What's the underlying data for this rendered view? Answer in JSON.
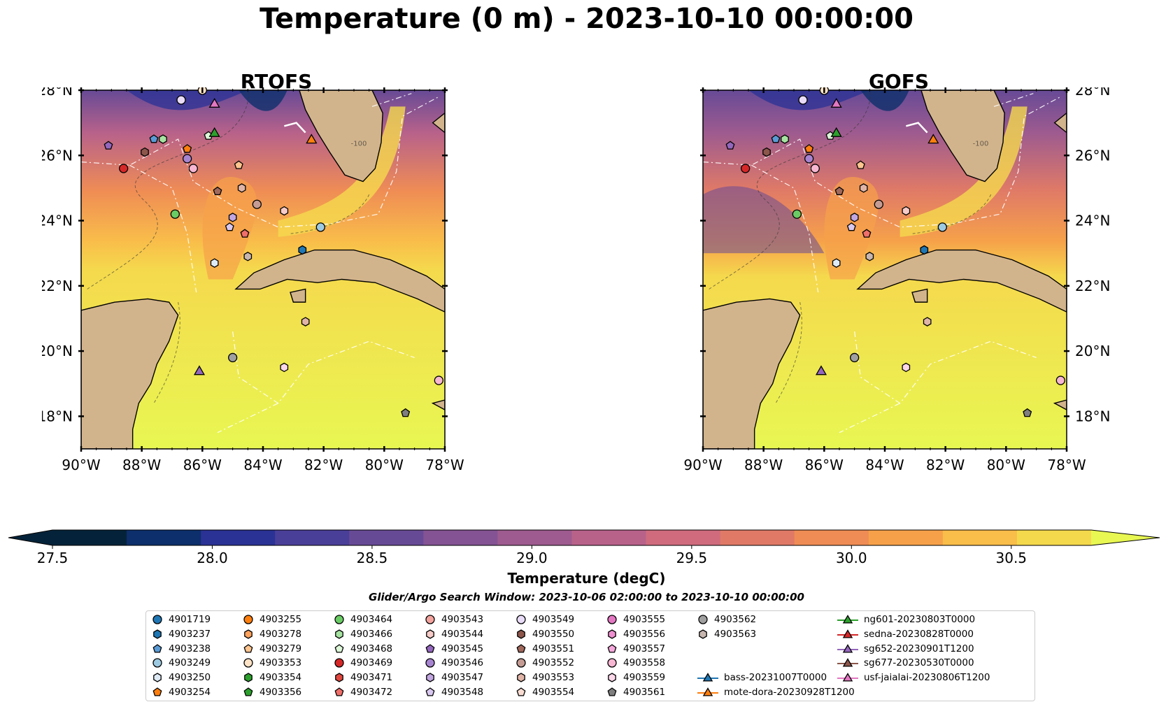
{
  "title": "Temperature (0 m) - 2023-10-10 00:00:00",
  "panels": [
    {
      "id": "rtofs",
      "title": "RTOFS"
    },
    {
      "id": "gofs",
      "title": "GOFS"
    }
  ],
  "map": {
    "lon_range": [
      -90,
      -78
    ],
    "lat_range": [
      17,
      28
    ],
    "lon_ticks": [
      "90°W",
      "88°W",
      "86°W",
      "84°W",
      "82°W",
      "80°W",
      "78°W"
    ],
    "lat_ticks": [
      "28°N",
      "26°N",
      "24°N",
      "22°N",
      "20°N",
      "18°N"
    ],
    "land_color": "#d2b48c",
    "contour_label": "-100"
  },
  "colorbar": {
    "label": "Temperature (degC)",
    "ticks": [
      "27.5",
      "28.0",
      "28.5",
      "29.0",
      "29.5",
      "30.0",
      "30.5"
    ],
    "range": [
      27.5,
      30.75
    ],
    "colors": [
      "#04233a",
      "#0d2f6b",
      "#2a3295",
      "#4a3f98",
      "#674a96",
      "#845393",
      "#9e5b8f",
      "#b8628a",
      "#cf6b7d",
      "#e07a67",
      "#ef8c55",
      "#f6a14a",
      "#f9bd4a",
      "#f5d94d"
    ],
    "extend_high_color": "#e8f752"
  },
  "search_window": "Glider/Argo Search Window: 2023-10-06 02:00:00 to 2023-10-10 00:00:00",
  "legend": [
    {
      "label": "4901719",
      "marker": "circle",
      "color": "#1f77b4"
    },
    {
      "label": "4903237",
      "marker": "hexagon",
      "color": "#1f77b4"
    },
    {
      "label": "4903238",
      "marker": "pentagon",
      "color": "#5a9bd5"
    },
    {
      "label": "4903249",
      "marker": "circle",
      "color": "#9ecae1"
    },
    {
      "label": "4903250",
      "marker": "hexagon",
      "color": "#deebf7"
    },
    {
      "label": "4903254",
      "marker": "pentagon",
      "color": "#ff7f0e"
    },
    {
      "label": "4903255",
      "marker": "circle",
      "color": "#ff7f0e"
    },
    {
      "label": "4903278",
      "marker": "hexagon",
      "color": "#ffa25c"
    },
    {
      "label": "4903279",
      "marker": "pentagon",
      "color": "#ffc58f"
    },
    {
      "label": "4903353",
      "marker": "circle",
      "color": "#ffe3c6"
    },
    {
      "label": "4903354",
      "marker": "hexagon",
      "color": "#2ca02c"
    },
    {
      "label": "4903356",
      "marker": "pentagon",
      "color": "#2ca02c"
    },
    {
      "label": "4903464",
      "marker": "circle",
      "color": "#6acc64"
    },
    {
      "label": "4903466",
      "marker": "hexagon",
      "color": "#a6e3a1"
    },
    {
      "label": "4903468",
      "marker": "pentagon",
      "color": "#ddf7d8"
    },
    {
      "label": "4903469",
      "marker": "circle",
      "color": "#d62728"
    },
    {
      "label": "4903471",
      "marker": "hexagon",
      "color": "#e0473f"
    },
    {
      "label": "4903472",
      "marker": "pentagon",
      "color": "#ef6f6a"
    },
    {
      "label": "4903543",
      "marker": "circle",
      "color": "#f3a39d"
    },
    {
      "label": "4903544",
      "marker": "hexagon",
      "color": "#f7cbc7"
    },
    {
      "label": "4903545",
      "marker": "pentagon",
      "color": "#9467bd"
    },
    {
      "label": "4903546",
      "marker": "circle",
      "color": "#a784d0"
    },
    {
      "label": "4903547",
      "marker": "hexagon",
      "color": "#c1a6e0"
    },
    {
      "label": "4903548",
      "marker": "pentagon",
      "color": "#d9c8f0"
    },
    {
      "label": "4903549",
      "marker": "circle",
      "color": "#e9dcf8"
    },
    {
      "label": "4903550",
      "marker": "hexagon",
      "color": "#8c564b"
    },
    {
      "label": "4903551",
      "marker": "pentagon",
      "color": "#a0695c"
    },
    {
      "label": "4903552",
      "marker": "circle",
      "color": "#c49c94"
    },
    {
      "label": "4903553",
      "marker": "hexagon",
      "color": "#e0b5a8"
    },
    {
      "label": "4903554",
      "marker": "pentagon",
      "color": "#f8dcd2"
    },
    {
      "label": "4903555",
      "marker": "circle",
      "color": "#e377c2"
    },
    {
      "label": "4903556",
      "marker": "hexagon",
      "color": "#ee8fd0"
    },
    {
      "label": "4903557",
      "marker": "pentagon",
      "color": "#f5a8db"
    },
    {
      "label": "4903558",
      "marker": "circle",
      "color": "#f7b6d2"
    },
    {
      "label": "4903559",
      "marker": "hexagon",
      "color": "#fbd7ea"
    },
    {
      "label": "4903561",
      "marker": "pentagon",
      "color": "#7f7f7f"
    },
    {
      "label": "4903562",
      "marker": "circle",
      "color": "#a0a0a0"
    },
    {
      "label": "4903563",
      "marker": "hexagon",
      "color": "#c7b6b0"
    },
    {
      "label": "bass-20231007T0000",
      "marker": "triangle-line",
      "color": "#1f77b4"
    },
    {
      "label": "mote-dora-20230928T1200",
      "marker": "triangle-line",
      "color": "#ff7f0e"
    },
    {
      "label": "ng601-20230803T0000",
      "marker": "triangle-line",
      "color": "#2ca02c"
    },
    {
      "label": "sedna-20230828T0000",
      "marker": "triangle-line",
      "color": "#d62728"
    },
    {
      "label": "sg652-20230901T1200",
      "marker": "triangle-line",
      "color": "#9467bd"
    },
    {
      "label": "sg677-20230530T0000",
      "marker": "triangle-line",
      "color": "#8c564b"
    },
    {
      "label": "usf-jaialai-20230806T1200",
      "marker": "triangle-line",
      "color": "#e377c2"
    }
  ],
  "floats": [
    {
      "id": "4903549",
      "lon": -86.7,
      "lat": 27.7
    },
    {
      "id": "4903353",
      "lon": -86.0,
      "lat": 28.0
    },
    {
      "id": "4903545",
      "lon": -89.1,
      "lat": 26.3
    },
    {
      "id": "4903238",
      "lon": -87.6,
      "lat": 26.5
    },
    {
      "id": "4903466",
      "lon": -87.3,
      "lat": 26.5
    },
    {
      "id": "4903550",
      "lon": -87.9,
      "lat": 26.1
    },
    {
      "id": "4903254",
      "lon": -86.5,
      "lat": 26.2
    },
    {
      "id": "4903468",
      "lon": -85.8,
      "lat": 26.6
    },
    {
      "id": "4903469",
      "lon": -88.6,
      "lat": 25.6
    },
    {
      "id": "4903546",
      "lon": -86.5,
      "lat": 25.9
    },
    {
      "id": "4903558",
      "lon": -86.3,
      "lat": 25.6
    },
    {
      "id": "4903279",
      "lon": -84.8,
      "lat": 25.7
    },
    {
      "id": "4903551",
      "lon": -85.5,
      "lat": 24.9
    },
    {
      "id": "4903553",
      "lon": -84.7,
      "lat": 25.0
    },
    {
      "id": "4903464",
      "lon": -86.9,
      "lat": 24.2
    },
    {
      "id": "4903552",
      "lon": -84.2,
      "lat": 24.5
    },
    {
      "id": "4903544",
      "lon": -83.3,
      "lat": 24.3
    },
    {
      "id": "4903547",
      "lon": -85.0,
      "lat": 24.1
    },
    {
      "id": "4903548",
      "lon": -85.1,
      "lat": 23.8
    },
    {
      "id": "4903472",
      "lon": -84.6,
      "lat": 23.6
    },
    {
      "id": "4903249",
      "lon": -82.1,
      "lat": 23.8
    },
    {
      "id": "4903237",
      "lon": -82.7,
      "lat": 23.1
    },
    {
      "id": "4903250",
      "lon": -85.6,
      "lat": 22.7
    },
    {
      "id": "4903563",
      "lon": -84.5,
      "lat": 22.9
    },
    {
      "id": "4903553",
      "lon": -82.6,
      "lat": 20.9
    },
    {
      "id": "4903562",
      "lon": -85.0,
      "lat": 19.8
    },
    {
      "id": "4903559",
      "lon": -83.3,
      "lat": 19.5
    },
    {
      "id": "4903558",
      "lon": -78.2,
      "lat": 19.1
    },
    {
      "id": "4903561",
      "lon": -79.3,
      "lat": 18.1
    }
  ],
  "gliders": [
    {
      "id": "ng601-20230803T0000",
      "lon": -85.6,
      "lat": 26.7
    },
    {
      "id": "usf-jaialai-20230806T1200",
      "lon": -85.6,
      "lat": 27.6
    },
    {
      "id": "mote-dora-20230928T1200",
      "lon": -82.4,
      "lat": 26.5
    },
    {
      "id": "sg652-20230901T1200",
      "lon": -86.1,
      "lat": 19.4
    }
  ]
}
